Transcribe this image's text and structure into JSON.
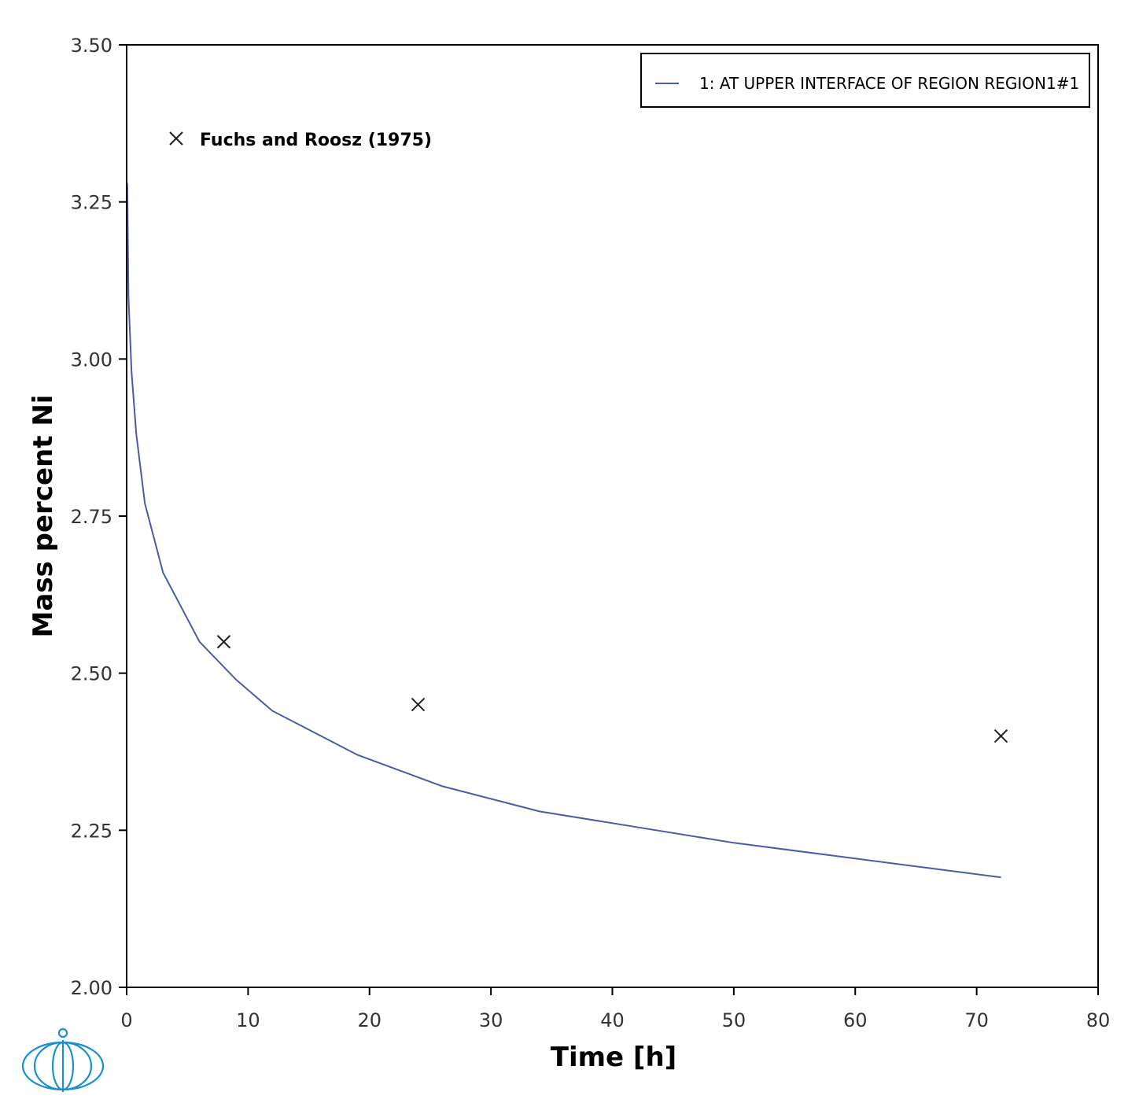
{
  "chart_data": {
    "type": "line",
    "xlabel": "Time [h]",
    "ylabel": "Mass percent Ni",
    "xlim": [
      0,
      80
    ],
    "ylim": [
      2.0,
      3.5
    ],
    "xticks": [
      0,
      10,
      20,
      30,
      40,
      50,
      60,
      70,
      80
    ],
    "yticks": [
      2.0,
      2.25,
      2.5,
      2.75,
      3.0,
      3.25,
      3.5
    ],
    "x_tick_labels": [
      "0",
      "10",
      "20",
      "30",
      "40",
      "50",
      "60",
      "70",
      "80"
    ],
    "y_tick_labels": [
      "2.00",
      "2.25",
      "2.50",
      "2.75",
      "3.00",
      "3.25",
      "3.50"
    ],
    "grid": false,
    "legend_position": "top-right",
    "series": [
      {
        "name": "1:  AT UPPER INTERFACE OF REGION REGION1#1",
        "color": "#4a5ba8",
        "x": [
          0.05,
          0.15,
          0.4,
          0.8,
          1.5,
          3,
          6,
          9,
          12,
          15,
          19,
          26,
          34,
          42,
          50,
          58,
          66,
          72
        ],
        "y": [
          3.28,
          3.1,
          2.98,
          2.88,
          2.77,
          2.66,
          2.55,
          2.49,
          2.44,
          2.41,
          2.37,
          2.32,
          2.28,
          2.255,
          2.23,
          2.21,
          2.19,
          2.175
        ]
      }
    ],
    "experimental": {
      "name": "Fuchs and Roosz (1975)",
      "marker": "cross",
      "color": "#222222",
      "x": [
        8,
        24,
        72
      ],
      "y": [
        2.55,
        2.45,
        2.4
      ]
    }
  },
  "logo": {
    "name": "thermo-calc-logo",
    "color": "#1b8fd0"
  }
}
